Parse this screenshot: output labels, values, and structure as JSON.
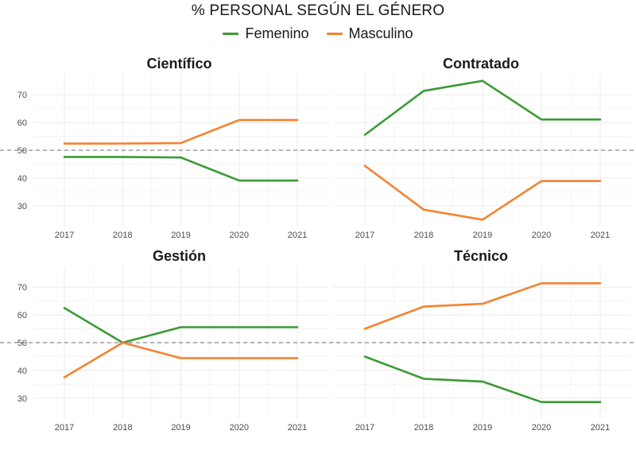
{
  "title": "% PERSONAL SEGÚN EL GÉNERO",
  "legend": [
    {
      "label": "Femenino",
      "color": "#3a9b34"
    },
    {
      "label": "Masculino",
      "color": "#f5822f"
    }
  ],
  "chart_data": {
    "type": "line",
    "title": "% PERSONAL SEGÚN EL GÉNERO",
    "x": [
      2017,
      2018,
      2019,
      2020,
      2021
    ],
    "x_tick_labels": [
      "2017",
      "2018",
      "2019",
      "2020",
      "2021"
    ],
    "y_ticks": [
      30,
      40,
      50,
      60,
      70
    ],
    "y_tick_labels": [
      "30",
      "40",
      "50",
      "60",
      "70"
    ],
    "ylim": [
      22.5,
      77.5
    ],
    "reference_line": 50,
    "grid": true,
    "legend_position": "top",
    "panels": [
      {
        "title": "Científico",
        "series": [
          {
            "name": "Femenino",
            "values": [
              47.6,
              47.6,
              47.4,
              39.1,
              39.1
            ]
          },
          {
            "name": "Masculino",
            "values": [
              52.4,
              52.4,
              52.6,
              60.9,
              60.9
            ]
          }
        ]
      },
      {
        "title": "Contratado",
        "series": [
          {
            "name": "Femenino",
            "values": [
              55.6,
              71.4,
              75.0,
              61.1,
              61.1
            ]
          },
          {
            "name": "Masculino",
            "values": [
              44.4,
              28.6,
              25.0,
              38.9,
              38.9
            ]
          }
        ]
      },
      {
        "title": "Gestión",
        "series": [
          {
            "name": "Femenino",
            "values": [
              62.5,
              50.0,
              55.6,
              55.6,
              55.6
            ]
          },
          {
            "name": "Masculino",
            "values": [
              37.5,
              50.0,
              44.4,
              44.4,
              44.4
            ]
          }
        ]
      },
      {
        "title": "Técnico",
        "series": [
          {
            "name": "Femenino",
            "values": [
              45.0,
              37.0,
              36.0,
              28.6,
              28.6
            ]
          },
          {
            "name": "Masculino",
            "values": [
              55.0,
              63.0,
              64.0,
              71.4,
              71.4
            ]
          }
        ]
      }
    ]
  }
}
